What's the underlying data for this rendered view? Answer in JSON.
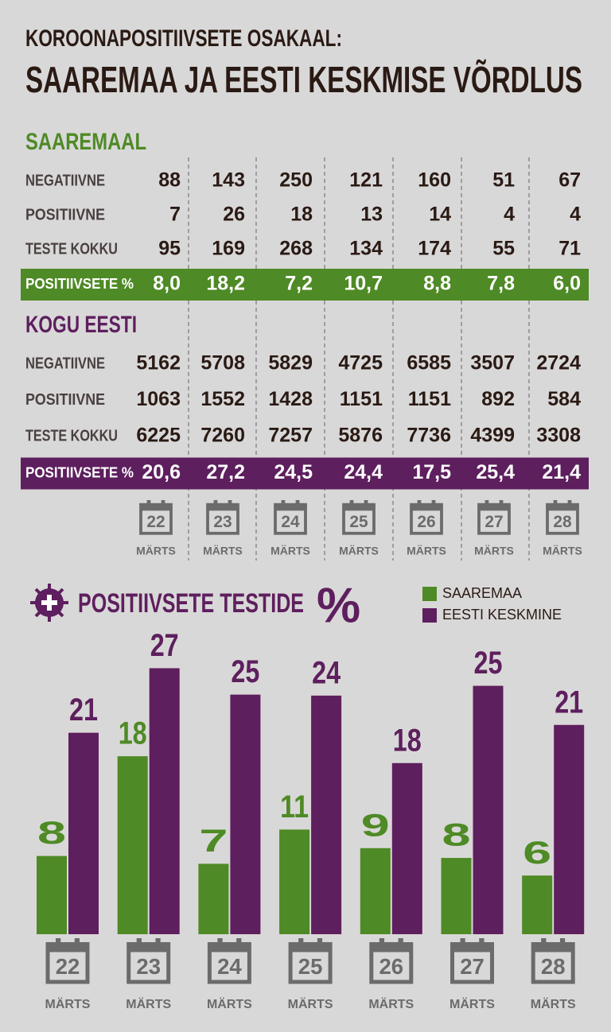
{
  "header": {
    "title": "KOROONAPOSITIIVSETE OSAKAAL:",
    "subtitle": "SAAREMAA JA EESTI KESKMISE VÕRDLUS"
  },
  "tables": [
    {
      "title": "SAAREMAAL",
      "color": "#4e8a25",
      "rows": [
        {
          "label": "NEGATIIVNE",
          "values": [
            88,
            143,
            250,
            121,
            160,
            51,
            67
          ]
        },
        {
          "label": "POSITIIVNE",
          "values": [
            7,
            26,
            18,
            13,
            14,
            4,
            4
          ]
        },
        {
          "label": "TESTE KOKKU",
          "values": [
            95,
            169,
            268,
            134,
            174,
            55,
            71
          ]
        },
        {
          "label": "POSITIIVSETE %",
          "values": [
            "8,0",
            "18,2",
            "7,2",
            "10,7",
            "8,8",
            "7,8",
            "6,0"
          ]
        }
      ]
    },
    {
      "title": "KOGU EESTI",
      "color": "#5e1f5e",
      "rows": [
        {
          "label": "NEGATIIVNE",
          "values": [
            5162,
            5708,
            5829,
            4725,
            6585,
            3507,
            2724
          ]
        },
        {
          "label": "POSITIIVNE",
          "values": [
            1063,
            1552,
            1428,
            1151,
            1151,
            892,
            584
          ]
        },
        {
          "label": "TESTE KOKKU",
          "values": [
            6225,
            7260,
            7257,
            5876,
            7736,
            4399,
            3308
          ]
        },
        {
          "label": "POSITIIVSETE %",
          "values": [
            "20,6",
            "27,2",
            "24,5",
            "24,4",
            "17,5",
            "25,4",
            "21,4"
          ]
        }
      ]
    }
  ],
  "dates": [
    "22",
    "23",
    "24",
    "25",
    "26",
    "27",
    "28"
  ],
  "month": "MÄRTS",
  "chart_data": {
    "type": "bar",
    "title": "POSITIIVSETE TESTIDE",
    "title_suffix": "%",
    "categories": [
      "22",
      "23",
      "24",
      "25",
      "26",
      "27",
      "28"
    ],
    "series": [
      {
        "name": "SAAREMAA",
        "color": "#4e8a25",
        "values": [
          8.0,
          18.2,
          7.2,
          10.7,
          8.8,
          7.8,
          6.0
        ],
        "value_labels": [
          "8",
          "18",
          "7",
          "11",
          "9",
          "8",
          "6"
        ]
      },
      {
        "name": "EESTI KESKMINE",
        "color": "#5e1f5e",
        "values": [
          20.6,
          27.2,
          24.5,
          24.4,
          17.5,
          25.4,
          21.4
        ],
        "value_labels": [
          "21",
          "27",
          "25",
          "24",
          "18",
          "25",
          "21"
        ]
      }
    ]
  }
}
